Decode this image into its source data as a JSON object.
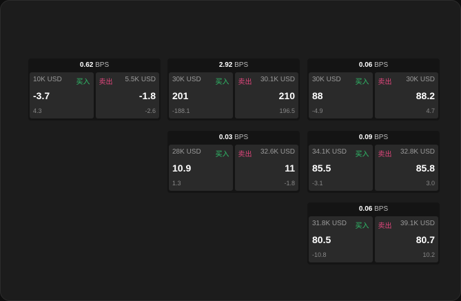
{
  "labels": {
    "buy": "买入",
    "sell": "卖出",
    "unit": "BPS"
  },
  "colors": {
    "buy": "#2fbf6a",
    "sell": "#e0467c"
  },
  "cards": [
    {
      "bps": "0.62",
      "bid_size": "10K USD",
      "bid": "-3.7",
      "bid_sub": "4.3",
      "ask_size": "5.5K USD",
      "ask": "-1.8",
      "ask_sub": "-2.6"
    },
    {
      "bps": "2.92",
      "bid_size": "30K USD",
      "bid": "201",
      "bid_sub": "-188.1",
      "ask_size": "30.1K USD",
      "ask": "210",
      "ask_sub": "196.5"
    },
    {
      "bps": "0.06",
      "bid_size": "30K USD",
      "bid": "88",
      "bid_sub": "-4.9",
      "ask_size": "30K USD",
      "ask": "88.2",
      "ask_sub": "4.7"
    },
    {
      "bps": "0.03",
      "bid_size": "28K USD",
      "bid": "10.9",
      "bid_sub": "1.3",
      "ask_size": "32.6K USD",
      "ask": "11",
      "ask_sub": "-1.8"
    },
    {
      "bps": "0.09",
      "bid_size": "34.1K USD",
      "bid": "85.5",
      "bid_sub": "-3.1",
      "ask_size": "32.8K USD",
      "ask": "85.8",
      "ask_sub": "3.0"
    },
    {
      "bps": "0.06",
      "bid_size": "31.8K USD",
      "bid": "80.5",
      "bid_sub": "-10.8",
      "ask_size": "39.1K USD",
      "ask": "80.7",
      "ask_sub": "10.2"
    }
  ]
}
